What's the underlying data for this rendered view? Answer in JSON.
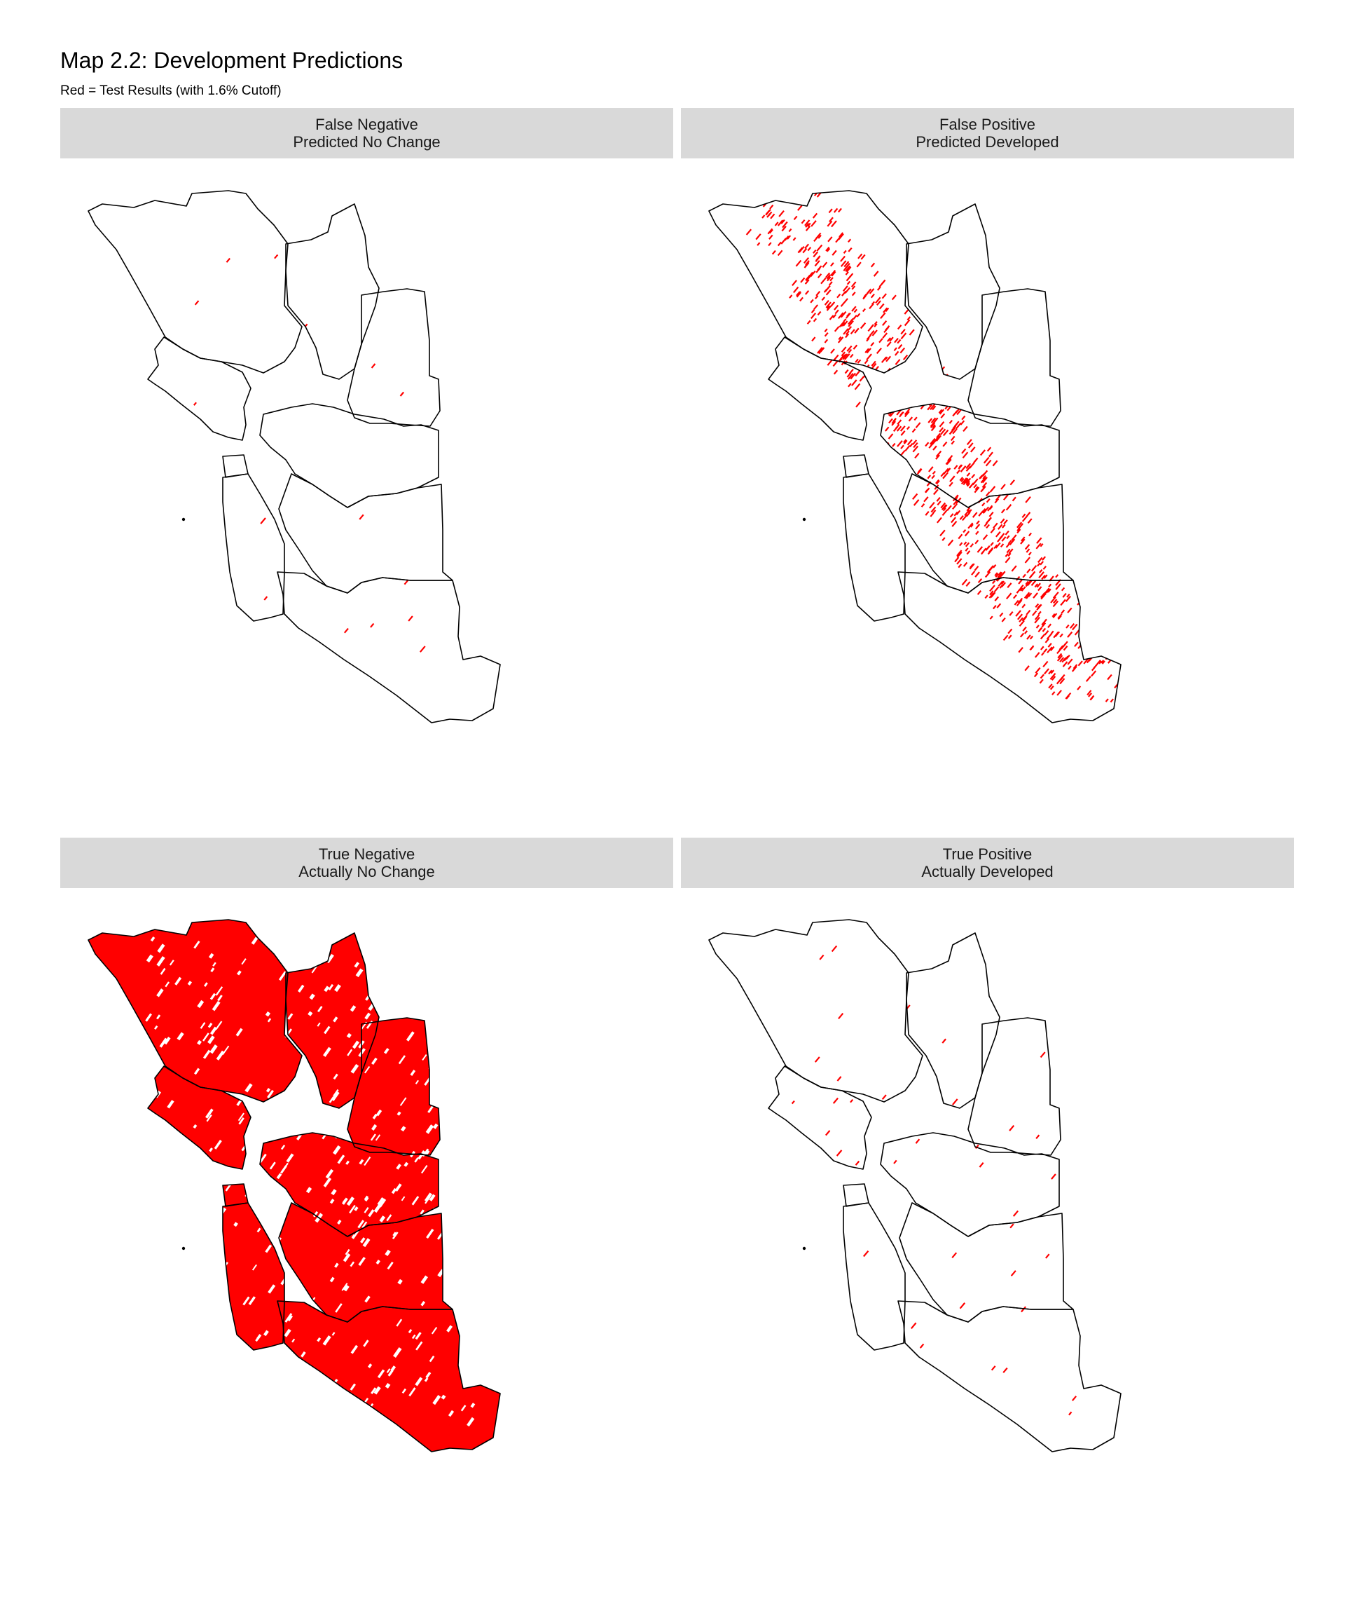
{
  "title": "Map 2.2: Development Predictions",
  "subtitle": "Red = Test Results (with 1.6% Cutoff)",
  "colors": {
    "highlight": "#ff0000",
    "boundary": "#000000",
    "strip_background": "#d9d9d9",
    "background": "#ffffff"
  },
  "panels": [
    {
      "line1": "False Negative",
      "line2": "Predicted No Change",
      "fill": "sparse",
      "density": 0.06
    },
    {
      "line1": "False Positive",
      "line2": "Predicted Developed",
      "fill": "corridor",
      "density": 0.45
    },
    {
      "line1": "True Negative",
      "line2": "Actually No Change",
      "fill": "full",
      "density": 1.0
    },
    {
      "line1": "True Positive",
      "line2": "Actually Developed",
      "fill": "sparse",
      "density": 0.12
    }
  ]
}
